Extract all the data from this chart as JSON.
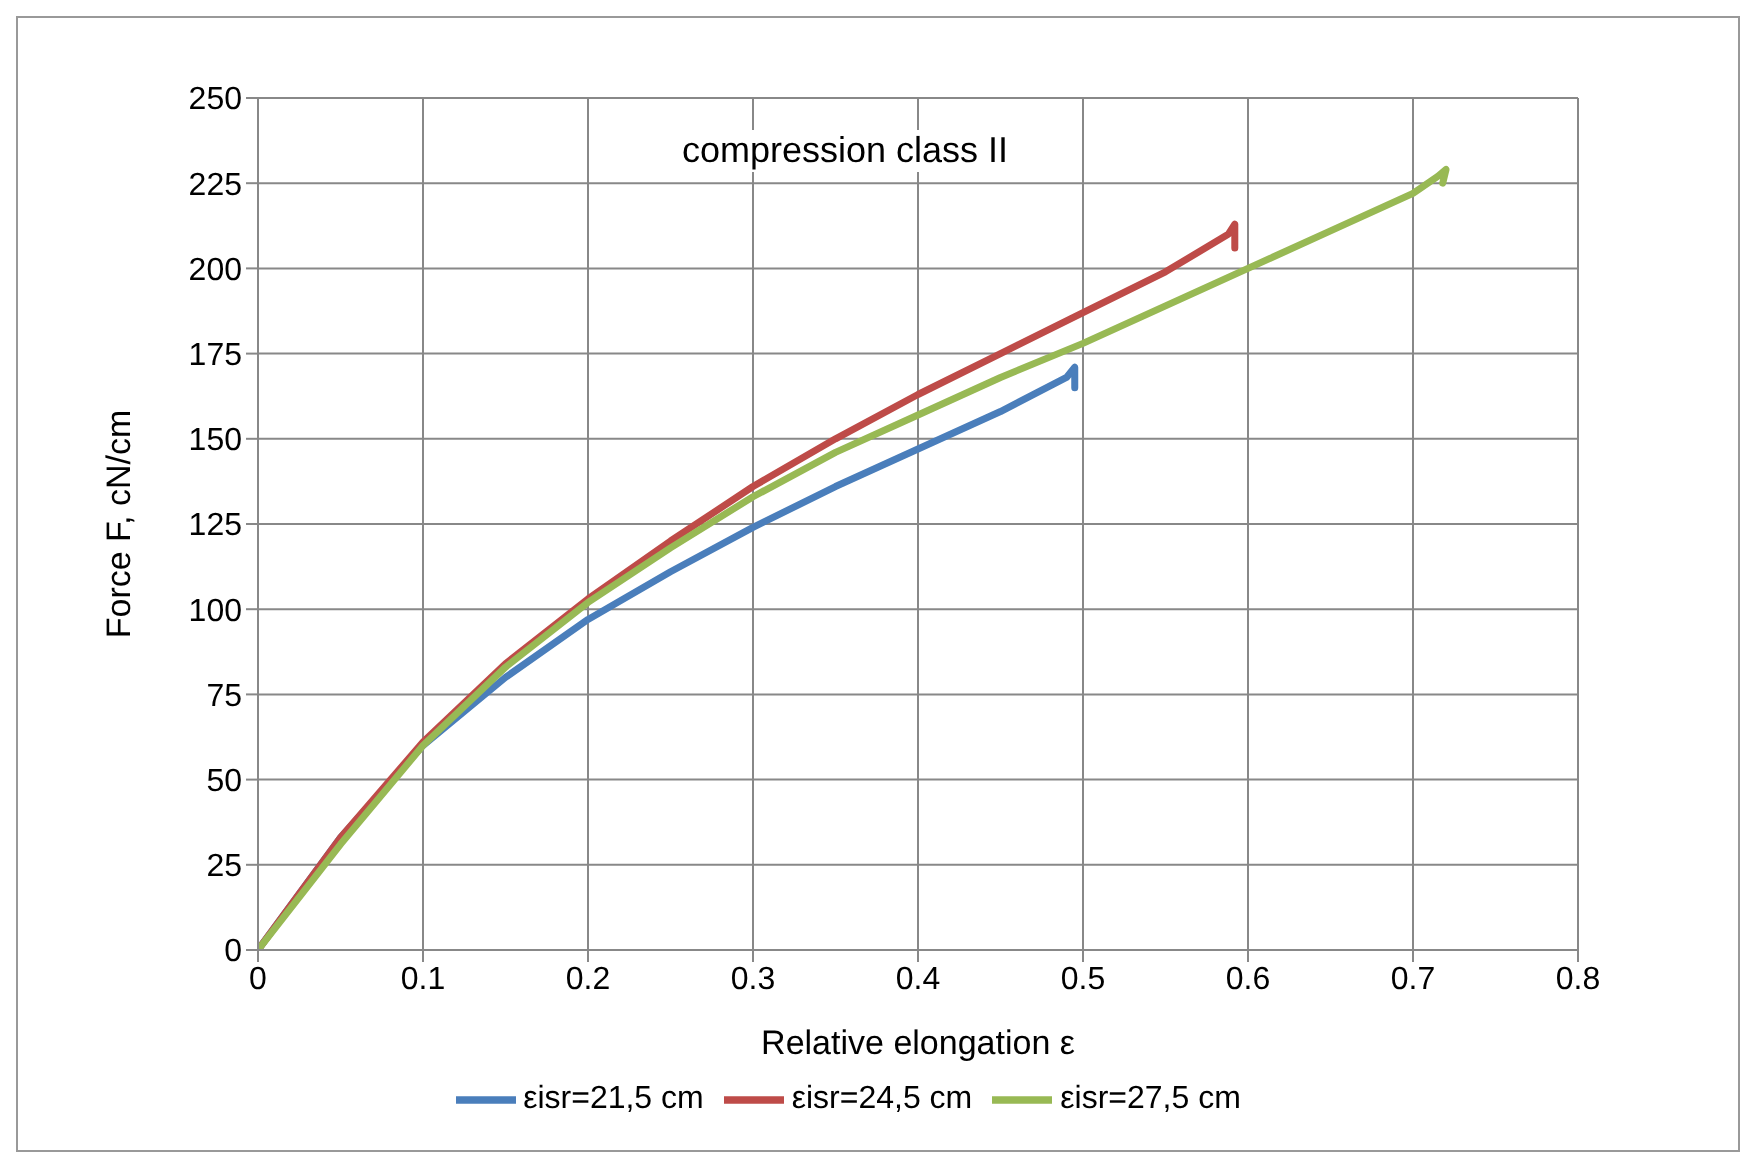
{
  "chart_data": {
    "type": "line",
    "title": "compression class II",
    "xlabel": "Relative elongation ε",
    "ylabel": "Force F, cN/cm",
    "xlim": [
      0,
      0.8
    ],
    "xticks": [
      0,
      0.1,
      0.2,
      0.3,
      0.4,
      0.5,
      0.6,
      0.7,
      0.8
    ],
    "ylim": [
      0,
      250
    ],
    "yticks": [
      0,
      25,
      50,
      75,
      100,
      125,
      150,
      175,
      200,
      225,
      250
    ],
    "grid": true,
    "legend": "bottom",
    "marker": "none",
    "line_style": "solid",
    "series": [
      {
        "name": "εisr=21,5 cm",
        "color": "#4a7ebb",
        "x": [
          0,
          0.05,
          0.1,
          0.15,
          0.2,
          0.25,
          0.3,
          0.35,
          0.4,
          0.45,
          0.49,
          0.495,
          0.495
        ],
        "values": [
          0,
          33,
          60,
          80,
          97,
          111,
          124,
          136,
          147,
          158,
          168,
          171,
          165
        ]
      },
      {
        "name": "εisr=24,5 cm",
        "color": "#be4b48",
        "x": [
          0,
          0.05,
          0.1,
          0.15,
          0.2,
          0.25,
          0.3,
          0.35,
          0.4,
          0.45,
          0.5,
          0.55,
          0.588,
          0.592,
          0.592
        ],
        "values": [
          0,
          33,
          61,
          84,
          103,
          120,
          136,
          150,
          163,
          175,
          187,
          199,
          210,
          213,
          206
        ]
      },
      {
        "name": "εisr=27,5 cm",
        "color": "#98b954",
        "x": [
          0,
          0.05,
          0.1,
          0.15,
          0.2,
          0.25,
          0.3,
          0.35,
          0.4,
          0.45,
          0.5,
          0.55,
          0.6,
          0.65,
          0.7,
          0.715,
          0.72,
          0.718
        ],
        "values": [
          0,
          31,
          60,
          83,
          102,
          118,
          133,
          146,
          157,
          168,
          178,
          189,
          200,
          211,
          222,
          227,
          229,
          225
        ]
      }
    ]
  }
}
